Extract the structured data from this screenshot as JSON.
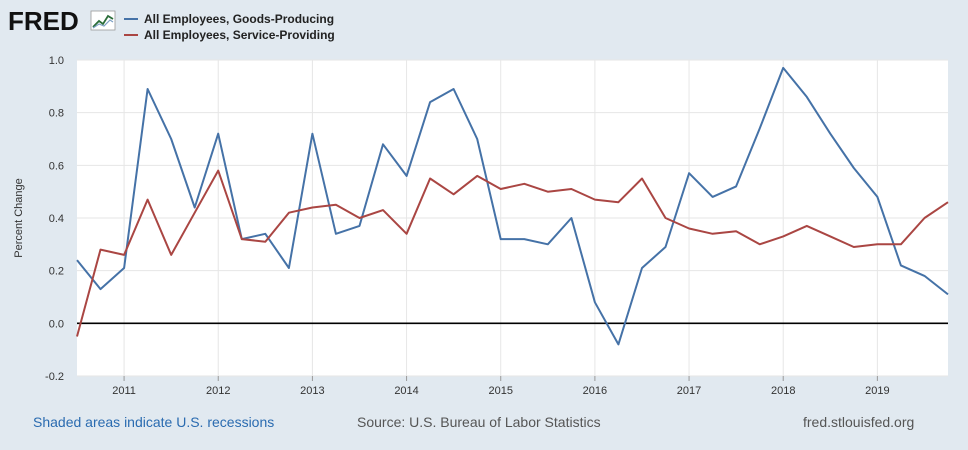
{
  "header": {
    "logo_text": "FRED",
    "logo_icon": "line-chart-icon"
  },
  "footer": {
    "recession_note": "Shaded areas indicate U.S. recessions",
    "source": "Source: U.S. Bureau of Labor Statistics",
    "site": "fred.stlouisfed.org"
  },
  "chart_data": {
    "type": "line",
    "ylabel": "Percent Change",
    "ylim": [
      -0.2,
      1.0
    ],
    "yticks": [
      "1.0",
      "0.8",
      "0.6",
      "0.4",
      "0.2",
      "0.0",
      "-0.2"
    ],
    "xlim": [
      2010.5,
      2019.75
    ],
    "xticks": [
      "2011",
      "2012",
      "2013",
      "2014",
      "2015",
      "2016",
      "2017",
      "2018",
      "2019"
    ],
    "grid": true,
    "legend": "top-left",
    "series": [
      {
        "name": "All Employees, Goods-Producing",
        "color": "#4572a7",
        "x": [
          2010.5,
          2010.75,
          2011.0,
          2011.25,
          2011.5,
          2011.75,
          2012.0,
          2012.25,
          2012.5,
          2012.75,
          2013.0,
          2013.25,
          2013.5,
          2013.75,
          2014.0,
          2014.25,
          2014.5,
          2014.75,
          2015.0,
          2015.25,
          2015.5,
          2015.75,
          2016.0,
          2016.25,
          2016.5,
          2016.75,
          2017.0,
          2017.25,
          2017.5,
          2017.75,
          2018.0,
          2018.25,
          2018.5,
          2018.75,
          2019.0,
          2019.25,
          2019.5,
          2019.75
        ],
        "y": [
          0.24,
          0.13,
          0.21,
          0.89,
          0.7,
          0.44,
          0.72,
          0.32,
          0.34,
          0.21,
          0.72,
          0.34,
          0.37,
          0.68,
          0.56,
          0.84,
          0.89,
          0.7,
          0.32,
          0.32,
          0.3,
          0.4,
          0.08,
          -0.08,
          0.21,
          0.29,
          0.57,
          0.48,
          0.52,
          0.74,
          0.97,
          0.86,
          0.72,
          0.59,
          0.48,
          0.22,
          0.18,
          0.11
        ]
      },
      {
        "name": "All Employees, Service-Providing",
        "color": "#aa4643",
        "x": [
          2010.5,
          2010.75,
          2011.0,
          2011.25,
          2011.5,
          2011.75,
          2012.0,
          2012.25,
          2012.5,
          2012.75,
          2013.0,
          2013.25,
          2013.5,
          2013.75,
          2014.0,
          2014.25,
          2014.5,
          2014.75,
          2015.0,
          2015.25,
          2015.5,
          2015.75,
          2016.0,
          2016.25,
          2016.5,
          2016.75,
          2017.0,
          2017.25,
          2017.5,
          2017.75,
          2018.0,
          2018.25,
          2018.5,
          2018.75,
          2019.0,
          2019.25,
          2019.5,
          2019.75
        ],
        "y": [
          -0.05,
          0.28,
          0.26,
          0.47,
          0.26,
          0.42,
          0.58,
          0.32,
          0.31,
          0.42,
          0.44,
          0.45,
          0.4,
          0.43,
          0.34,
          0.55,
          0.49,
          0.56,
          0.51,
          0.53,
          0.5,
          0.51,
          0.47,
          0.46,
          0.55,
          0.4,
          0.36,
          0.34,
          0.35,
          0.3,
          0.33,
          0.37,
          0.33,
          0.29,
          0.3,
          0.3,
          0.4,
          0.46
        ]
      }
    ]
  }
}
